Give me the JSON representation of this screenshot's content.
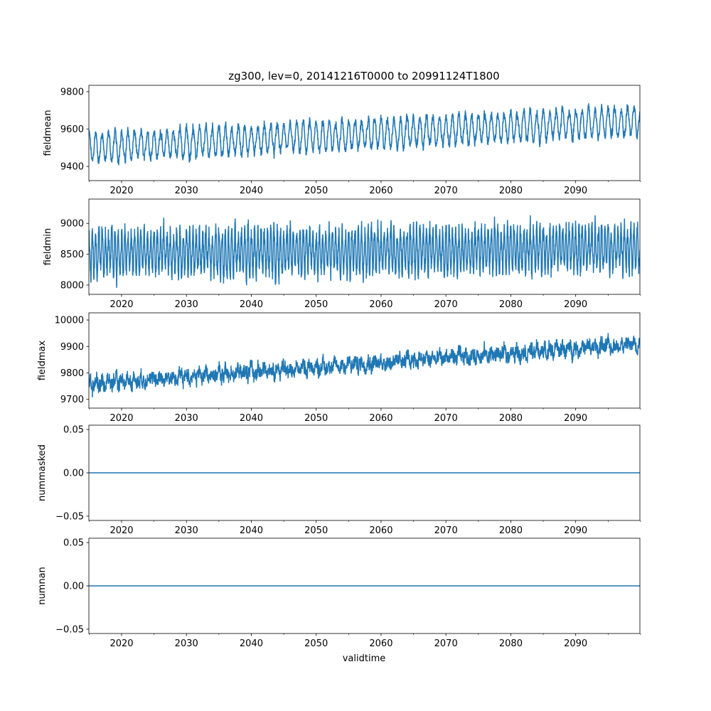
{
  "chart_data": {
    "type": "line",
    "title": "zg300, lev=0, 20141216T0000 to 20991124T1800",
    "xlabel": "validtime",
    "xlim": [
      2014.96,
      2099.9
    ],
    "xticks": [
      2020,
      2030,
      2040,
      2050,
      2060,
      2070,
      2080,
      2090
    ],
    "xminor_step": 5,
    "grid": false,
    "line_color": "#1f77b4",
    "sampling": "6-hourly, shown as synthesized series from trend + seasonal cycle + noise",
    "panels": [
      {
        "ylabel": "fieldmean",
        "ylim": [
          9324,
          9834
        ],
        "yticks": [
          9400,
          9600,
          9800
        ],
        "ytick_labels": [
          "9400",
          "9600",
          "9800"
        ],
        "trend_start": 9500,
        "trend_end": 9645,
        "seasonal_amplitude": 75,
        "noise": 25,
        "cycles_per_year": 1
      },
      {
        "ylabel": "fieldmin",
        "ylim": [
          7849,
          9395
        ],
        "yticks": [
          8000,
          8500,
          9000
        ],
        "ytick_labels": [
          "8000",
          "8500",
          "9000"
        ],
        "trend_start": 8520,
        "trend_end": 8600,
        "seasonal_amplitude": 330,
        "noise": 160,
        "cycles_per_year": 2
      },
      {
        "ylabel": "fieldmax",
        "ylim": [
          9667,
          10027
        ],
        "yticks": [
          9700,
          9800,
          9900,
          10000
        ],
        "ytick_labels": [
          "9700",
          "9800",
          "9900",
          "10000"
        ],
        "trend_start": 9760,
        "trend_end": 9910,
        "seasonal_amplitude": 12,
        "noise": 28,
        "cycles_per_year": 1
      },
      {
        "ylabel": "nummasked",
        "ylim": [
          -0.055,
          0.055
        ],
        "yticks": [
          -0.05,
          0,
          0.05
        ],
        "ytick_labels": [
          "−0.05",
          "0.00",
          "0.05"
        ],
        "trend_start": 0,
        "trend_end": 0,
        "seasonal_amplitude": 0,
        "noise": 0,
        "cycles_per_year": 1
      },
      {
        "ylabel": "numnan",
        "ylim": [
          -0.055,
          0.055
        ],
        "yticks": [
          -0.05,
          0,
          0.05
        ],
        "ytick_labels": [
          "−0.05",
          "0.00",
          "0.05"
        ],
        "trend_start": 0,
        "trend_end": 0,
        "seasonal_amplitude": 0,
        "noise": 0,
        "cycles_per_year": 1
      }
    ]
  }
}
